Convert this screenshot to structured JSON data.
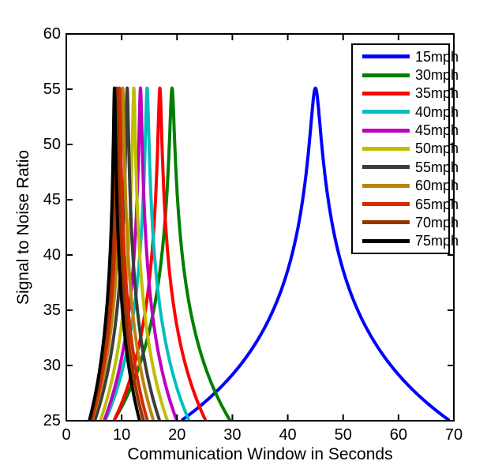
{
  "chart_data": {
    "type": "line",
    "title": "",
    "xlabel": "Communication Window in Seconds",
    "ylabel": "Signal to Noise Ratio",
    "xlim": [
      0,
      70
    ],
    "ylim": [
      25,
      60
    ],
    "x_ticks": [
      0,
      10,
      20,
      30,
      40,
      50,
      60,
      70
    ],
    "y_ticks": [
      25,
      30,
      35,
      40,
      45,
      50,
      55,
      60
    ],
    "grid": false,
    "legend_position": "upper right",
    "background_color": "#ffffff",
    "axis_color": "#000000",
    "peak_snr": 55.1,
    "base_snr": 25,
    "curve_model": "snr(t) = peak_snr - 20*log10(sqrt(1 + ((t - peak_x)/(halfwidth/31.62))^2)), plotted where snr >= base_snr",
    "series": [
      {
        "name": "15mph",
        "color": "#0000FF",
        "peak_x": 45.0,
        "halfwidth": 24.0,
        "x_start": 21.0,
        "x_end": 69.0
      },
      {
        "name": "30mph",
        "color": "#007F00",
        "peak_x": 19.1,
        "halfwidth": 10.4,
        "x_start": 8.7,
        "x_end": 29.5
      },
      {
        "name": "35mph",
        "color": "#FF0000",
        "peak_x": 16.9,
        "halfwidth": 8.2,
        "x_start": 8.7,
        "x_end": 25.1
      },
      {
        "name": "40mph",
        "color": "#00BFBF",
        "peak_x": 14.6,
        "halfwidth": 7.5,
        "x_start": 7.1,
        "x_end": 22.1
      },
      {
        "name": "45mph",
        "color": "#BF00BF",
        "peak_x": 13.4,
        "halfwidth": 6.5,
        "x_start": 6.9,
        "x_end": 19.9
      },
      {
        "name": "50mph",
        "color": "#BFBF00",
        "peak_x": 12.2,
        "halfwidth": 6.0,
        "x_start": 6.2,
        "x_end": 18.2
      },
      {
        "name": "55mph",
        "color": "#3C3C3C",
        "peak_x": 11.0,
        "halfwidth": 5.8,
        "x_start": 5.2,
        "x_end": 16.8
      },
      {
        "name": "60mph",
        "color": "#B8860B",
        "peak_x": 10.2,
        "halfwidth": 5.5,
        "x_start": 4.7,
        "x_end": 15.7
      },
      {
        "name": "65mph",
        "color": "#D42A00",
        "peak_x": 9.6,
        "halfwidth": 5.0,
        "x_start": 4.6,
        "x_end": 14.6
      },
      {
        "name": "70mph",
        "color": "#993300",
        "peak_x": 9.1,
        "halfwidth": 4.8,
        "x_start": 4.3,
        "x_end": 13.9
      },
      {
        "name": "75mph",
        "color": "#000000",
        "peak_x": 8.7,
        "halfwidth": 4.5,
        "x_start": 4.2,
        "x_end": 13.2
      }
    ]
  }
}
